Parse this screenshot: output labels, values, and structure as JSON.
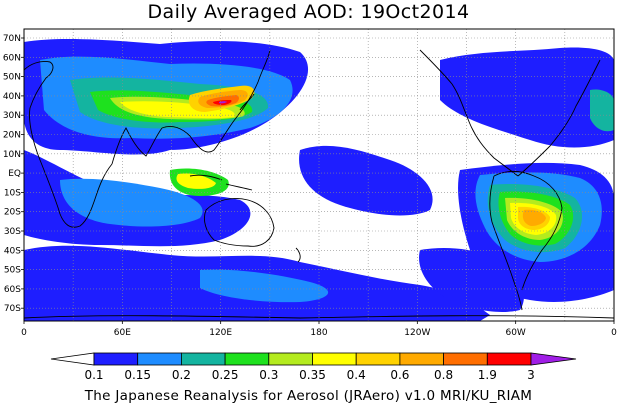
{
  "title": "Daily Averaged AOD: 19Oct2014",
  "footer": "The Japanese Reanalysis for Aerosol (JRAero) v1.0 MRI/KU_RIAM",
  "map": {
    "lat_labels": [
      "70N",
      "60N",
      "50N",
      "40N",
      "30N",
      "20N",
      "10N",
      "EQ",
      "10S",
      "20S",
      "30S",
      "40S",
      "50S",
      "60S",
      "70S"
    ],
    "lon_labels": [
      "0",
      "60E",
      "120E",
      "180",
      "120W",
      "60W",
      "0"
    ]
  },
  "colorbar": {
    "labels": [
      "0.1",
      "0.15",
      "0.2",
      "0.25",
      "0.3",
      "0.35",
      "0.4",
      "0.6",
      "0.8",
      "1.9",
      "3"
    ],
    "colors": [
      "#ffffff",
      "#1e1eff",
      "#1e8cff",
      "#14b4a0",
      "#1ee11e",
      "#b4eb1e",
      "#ffff00",
      "#ffd200",
      "#ffaa00",
      "#ff6e00",
      "#ff0000",
      "#a01ee6"
    ]
  },
  "colors": {
    "land_outline": "#000000",
    "grid": "#8c8c8c"
  }
}
